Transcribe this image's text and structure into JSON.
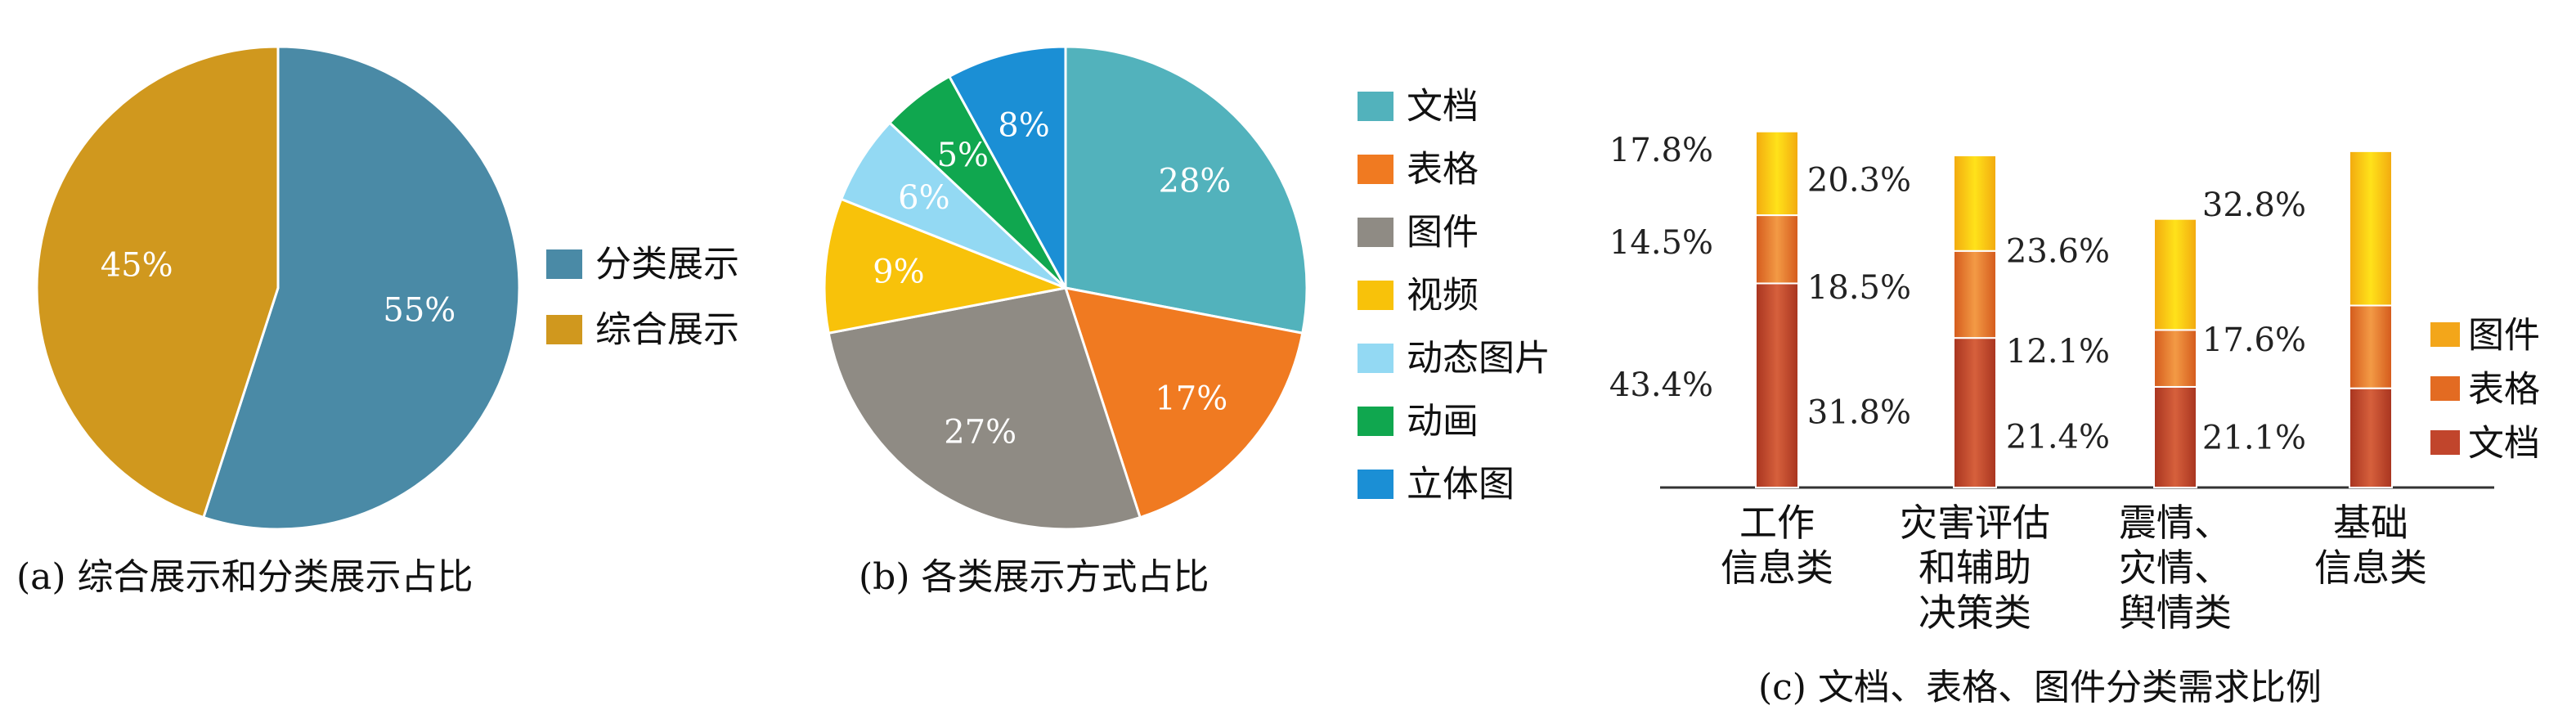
{
  "chart_data": [
    {
      "type": "pie",
      "caption": "(a) 综合展示和分类展示占比",
      "categories": [
        "分类展示",
        "综合展示"
      ],
      "values": [
        55,
        45
      ],
      "value_labels": [
        "55%",
        "45%"
      ],
      "colors": [
        "#4a8aa6",
        "#d0981e"
      ],
      "legend_position": "right"
    },
    {
      "type": "pie",
      "caption": "(b) 各类展示方式占比",
      "categories": [
        "文档",
        "表格",
        "图件",
        "视频",
        "动态图片",
        "动画",
        "立体图"
      ],
      "values": [
        28,
        17,
        27,
        9,
        6,
        5,
        8
      ],
      "value_labels": [
        "28%",
        "17%",
        "27%",
        "9%",
        "6%",
        "5%",
        "8%"
      ],
      "colors": [
        "#52b2bc",
        "#f07a21",
        "#8f8b84",
        "#f8c20a",
        "#93d9f3",
        "#10a74f",
        "#1b8fd5"
      ],
      "legend_position": "right"
    },
    {
      "type": "bar",
      "stacked": true,
      "caption": "(c) 文档、表格、图件分类需求比例",
      "categories": [
        "工作\n信息类",
        "灾害评估\n和辅助\n决策类",
        "震情、\n灾情、\n舆情类",
        "基础\n信息类"
      ],
      "series": [
        {
          "name": "文档",
          "values": [
            43.4,
            31.8,
            21.4,
            21.1
          ],
          "labels": [
            "43.4%",
            "31.8%",
            "21.4%",
            "21.1%"
          ],
          "color": "#c1452c"
        },
        {
          "name": "表格",
          "values": [
            14.5,
            18.5,
            12.1,
            17.6
          ],
          "labels": [
            "14.5%",
            "18.5%",
            "12.1%",
            "17.6%"
          ],
          "color": "#e8702a"
        },
        {
          "name": "图件",
          "values": [
            17.8,
            20.3,
            23.6,
            32.8
          ],
          "labels": [
            "17.8%",
            "20.3%",
            "23.6%",
            "32.8%"
          ],
          "color": "#f7b718"
        }
      ],
      "legend_position": "right"
    }
  ]
}
